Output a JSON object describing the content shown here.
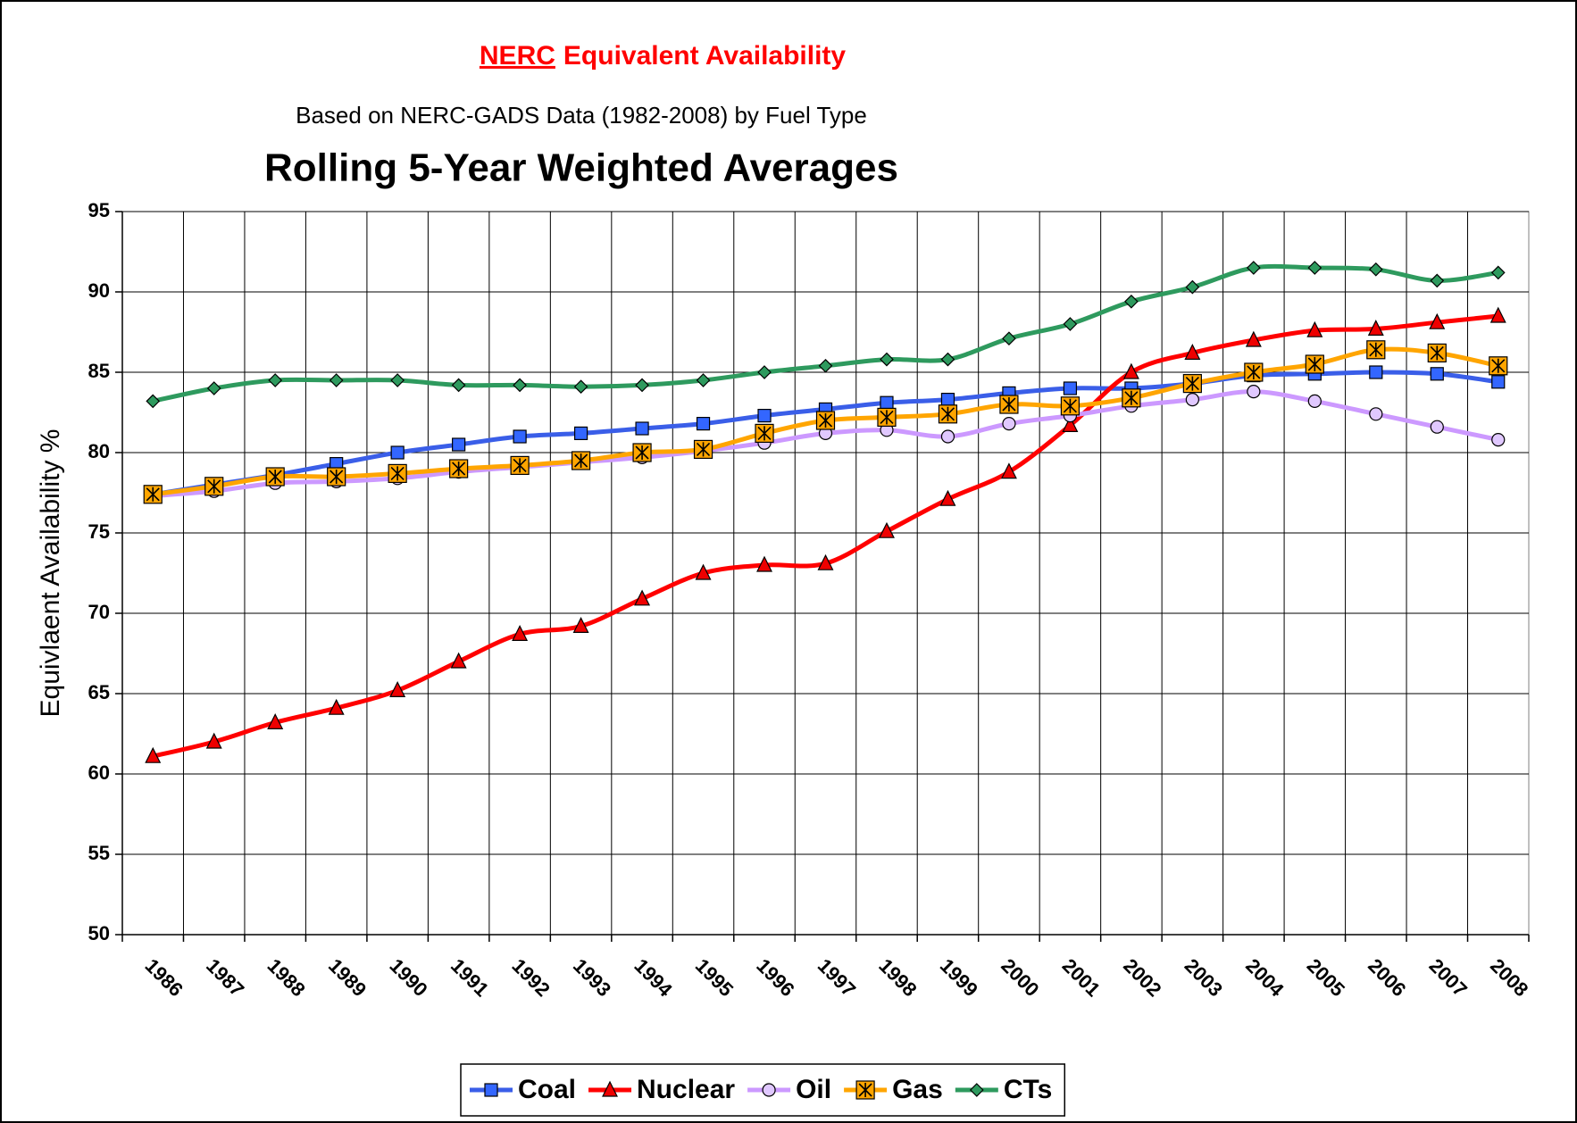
{
  "chart_data": {
    "type": "line",
    "title_link": "NERC",
    "title": "Equivalent Availability",
    "subtitle": "Based on NERC-GADS Data (1982-2008) by Fuel Type",
    "heading": "Rolling 5-Year Weighted Averages",
    "y_label": "Equivlaent Availability %",
    "categories": [
      "1986",
      "1987",
      "1988",
      "1989",
      "1990",
      "1991",
      "1992",
      "1993",
      "1994",
      "1995",
      "1996",
      "1997",
      "1998",
      "1999",
      "2000",
      "2001",
      "2002",
      "2003",
      "2004",
      "2005",
      "2006",
      "2007",
      "2008"
    ],
    "ylim": [
      50,
      95
    ],
    "yticks": [
      50,
      55,
      60,
      65,
      70,
      75,
      80,
      85,
      90,
      95
    ],
    "grid": true,
    "legend": "bottom",
    "series": [
      {
        "name": "Coal",
        "color": "#3a5ee8",
        "marker": "square",
        "values": [
          77.4,
          78.0,
          78.6,
          79.3,
          80.0,
          80.5,
          81.0,
          81.2,
          81.5,
          81.8,
          82.3,
          82.7,
          83.1,
          83.3,
          83.7,
          84.0,
          84.0,
          84.3,
          84.8,
          84.9,
          85.0,
          84.9,
          84.4
        ]
      },
      {
        "name": "Nuclear",
        "color": "#ff0000",
        "marker": "triangle",
        "values": [
          61.1,
          62.0,
          63.2,
          64.1,
          65.2,
          67.0,
          68.7,
          69.2,
          70.9,
          72.5,
          73.0,
          73.1,
          75.1,
          77.1,
          78.8,
          81.7,
          85.0,
          86.2,
          87.0,
          87.6,
          87.7,
          88.1,
          88.5
        ]
      },
      {
        "name": "Oil",
        "color": "#cc99ff",
        "marker": "circle",
        "values": [
          77.3,
          77.6,
          78.1,
          78.2,
          78.4,
          78.8,
          79.1,
          79.4,
          79.7,
          80.1,
          80.6,
          81.2,
          81.4,
          81.0,
          81.8,
          82.3,
          82.9,
          83.3,
          83.8,
          83.2,
          82.4,
          81.6,
          80.8
        ]
      },
      {
        "name": "Gas",
        "color": "#ffa500",
        "marker": "star-square",
        "values": [
          77.4,
          77.9,
          78.5,
          78.5,
          78.7,
          79.0,
          79.2,
          79.5,
          80.0,
          80.2,
          81.2,
          82.0,
          82.2,
          82.4,
          83.0,
          82.9,
          83.4,
          84.3,
          85.0,
          85.5,
          86.4,
          86.2,
          85.4
        ]
      },
      {
        "name": "CTs",
        "color": "#2e9a5e",
        "marker": "diamond",
        "values": [
          83.2,
          84.0,
          84.5,
          84.5,
          84.5,
          84.2,
          84.2,
          84.1,
          84.2,
          84.5,
          85.0,
          85.4,
          85.8,
          85.8,
          87.1,
          88.0,
          89.4,
          90.3,
          91.5,
          91.5,
          91.4,
          90.7,
          91.2
        ]
      }
    ]
  }
}
